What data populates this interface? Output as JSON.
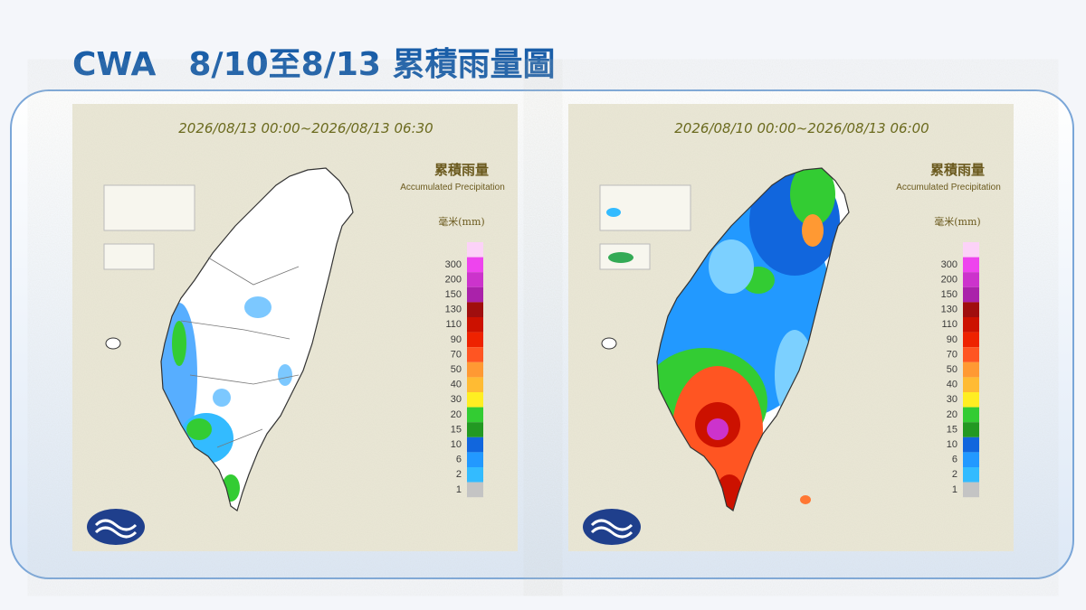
{
  "title": "CWA　8/10至8/13 累積雨量圖",
  "panels": [
    {
      "time_range": "2026/08/13 00:00~2026/08/13 06:30"
    },
    {
      "time_range": "2026/08/10 00:00~2026/08/13 06:00"
    }
  ],
  "legend": {
    "title": "累積雨量",
    "subtitle": "Accumulated Precipitation",
    "unit": "毫米(mm)",
    "top_color": "#fcd2f8",
    "levels": [
      {
        "value": 300,
        "color": "#ee44ee"
      },
      {
        "value": 200,
        "color": "#cc33cc"
      },
      {
        "value": 150,
        "color": "#aa22aa"
      },
      {
        "value": 130,
        "color": "#a00e0e"
      },
      {
        "value": 110,
        "color": "#cc1100"
      },
      {
        "value": 90,
        "color": "#ee2200"
      },
      {
        "value": 70,
        "color": "#ff5522"
      },
      {
        "value": 50,
        "color": "#ff9933"
      },
      {
        "value": 40,
        "color": "#ffbb33"
      },
      {
        "value": 30,
        "color": "#ffee22"
      },
      {
        "value": 20,
        "color": "#33cc33"
      },
      {
        "value": 15,
        "color": "#229922"
      },
      {
        "value": 10,
        "color": "#1166dd"
      },
      {
        "value": 6,
        "color": "#2299ff"
      },
      {
        "value": 2,
        "color": "#33bbff"
      },
      {
        "value": 1,
        "color": "#c4c4c4"
      }
    ]
  }
}
